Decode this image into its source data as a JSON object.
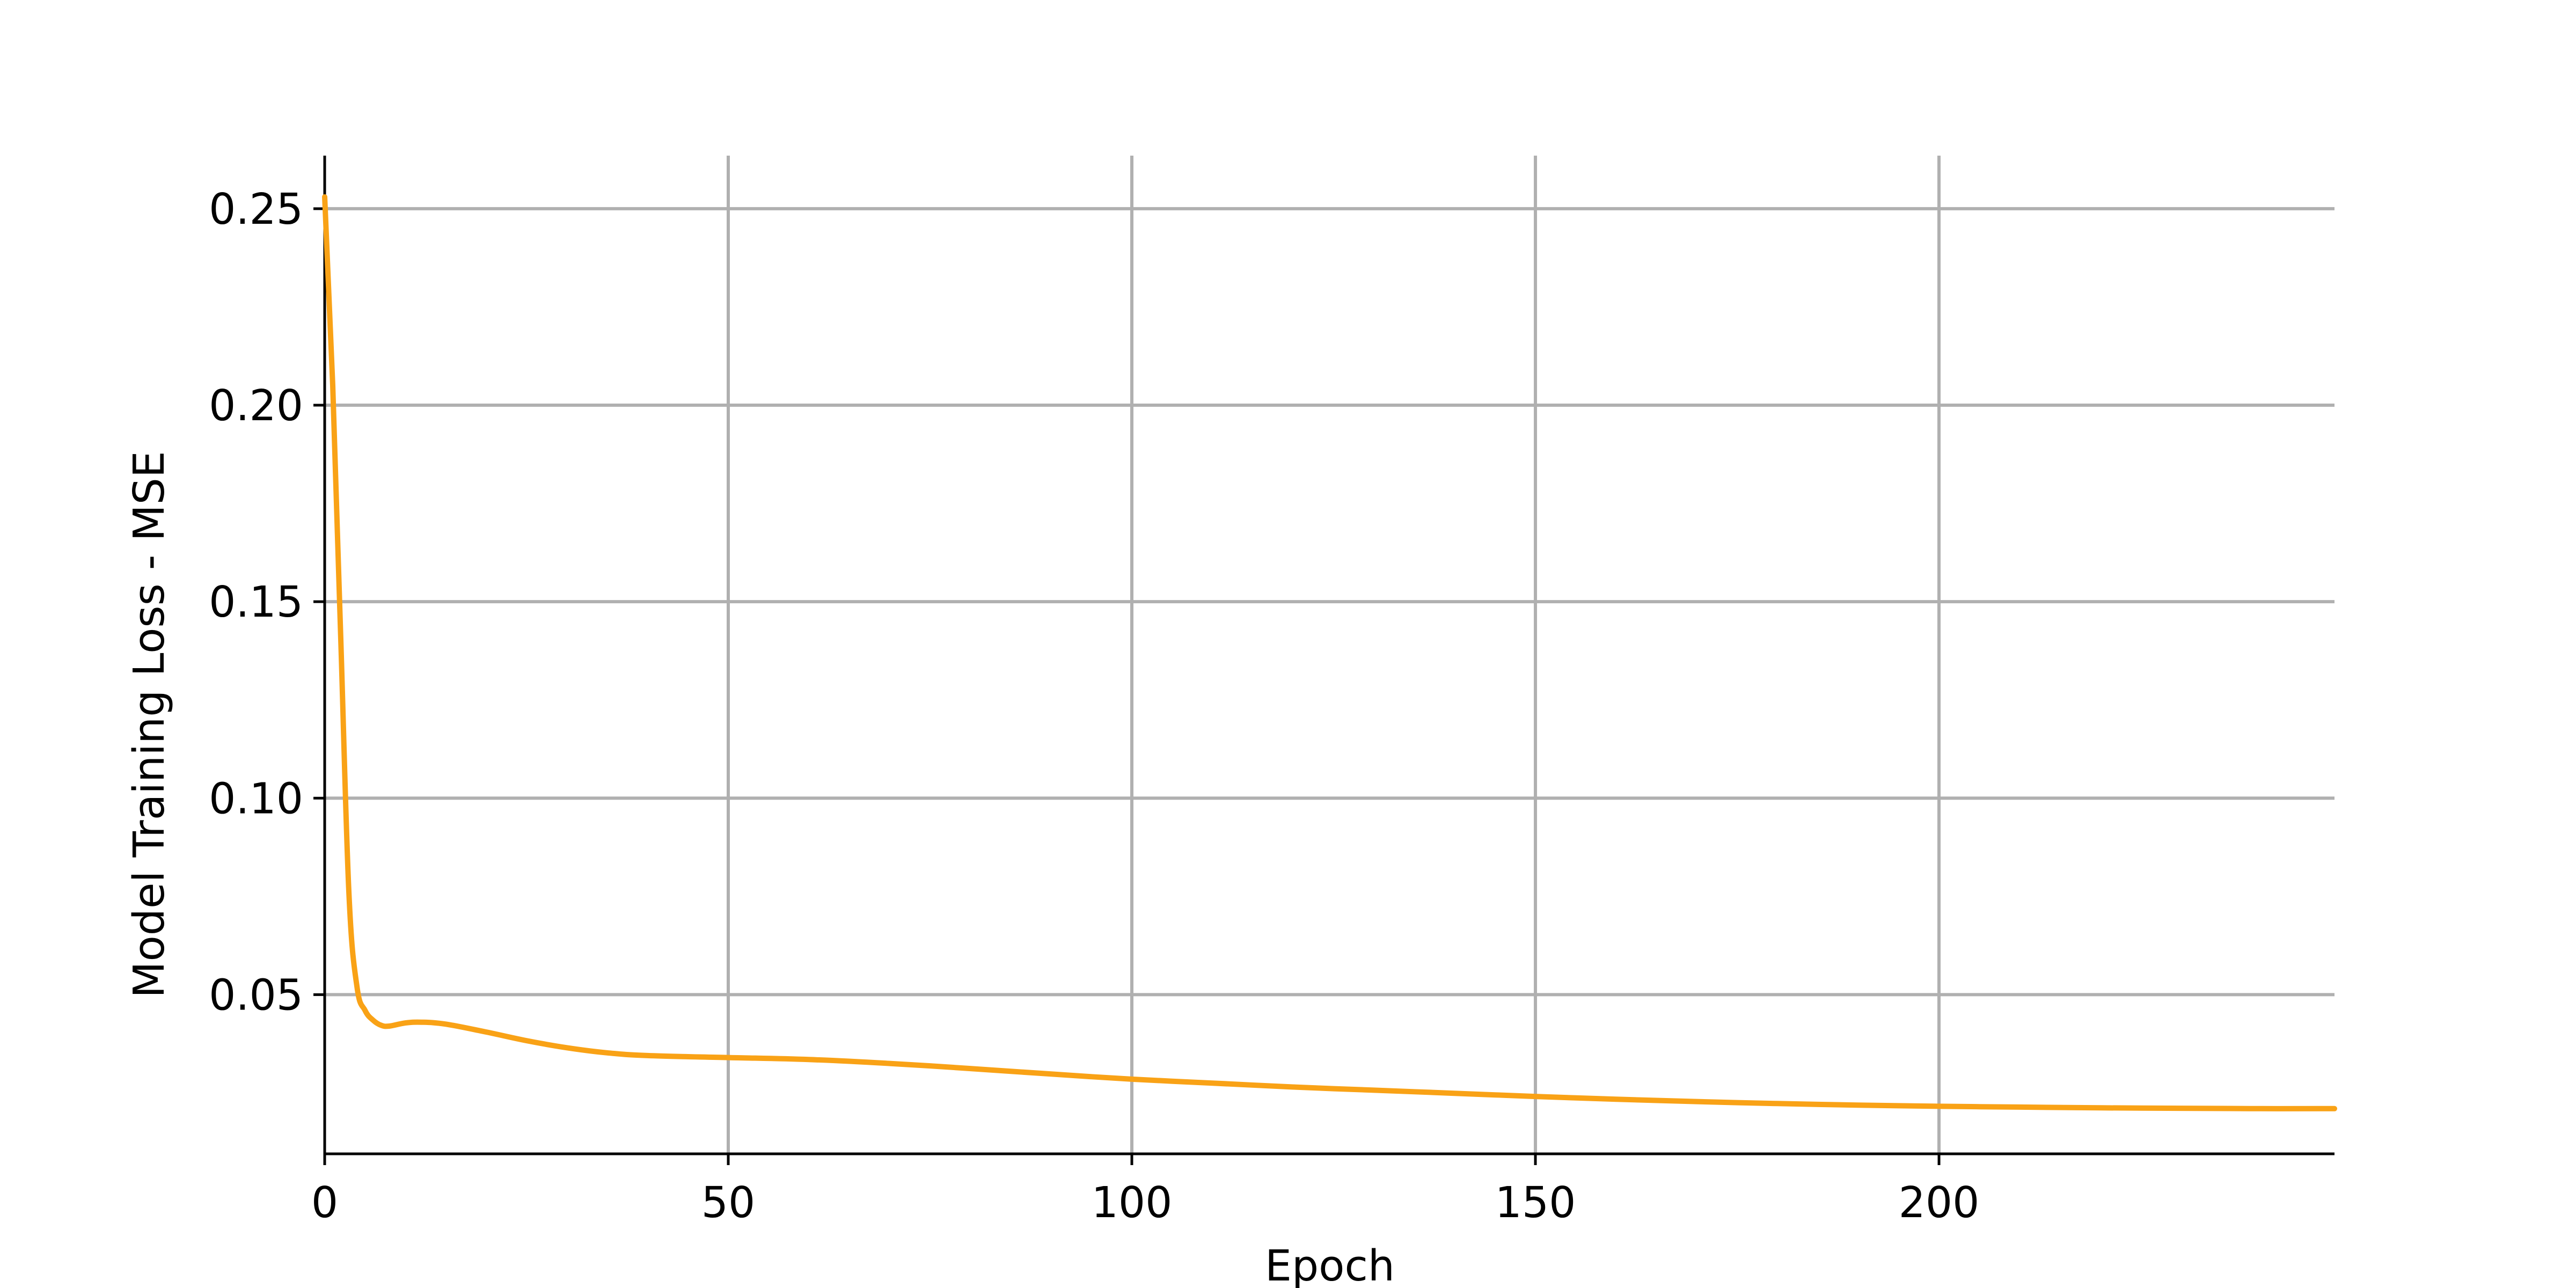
{
  "chart_data": {
    "type": "line",
    "title": "",
    "xlabel": "Epoch",
    "ylabel": "Model Training Loss - MSE",
    "xlim": [
      0,
      249
    ],
    "ylim": [
      0.0095,
      0.2635
    ],
    "x_ticks": [
      0,
      50,
      100,
      150,
      200
    ],
    "x_tick_labels": [
      "0",
      "50",
      "100",
      "150",
      "200"
    ],
    "y_ticks": [
      0.05,
      0.1,
      0.15,
      0.2,
      0.25
    ],
    "y_tick_labels": [
      "0.05",
      "0.10",
      "0.15",
      "0.20",
      "0.25"
    ],
    "grid": true,
    "legend": "none",
    "series": [
      {
        "color": "#f9a216",
        "x": [
          0,
          1,
          2,
          3,
          4,
          5,
          6,
          7,
          8,
          10,
          12,
          15,
          20,
          25,
          30,
          35,
          40,
          50,
          60,
          70,
          80,
          90,
          100,
          110,
          120,
          130,
          140,
          150,
          160,
          170,
          180,
          190,
          200,
          210,
          220,
          230,
          240,
          249
        ],
        "y": [
          0.253,
          0.205,
          0.14,
          0.076,
          0.052,
          0.046,
          0.0435,
          0.0422,
          0.042,
          0.0428,
          0.043,
          0.0425,
          0.0405,
          0.0383,
          0.0365,
          0.0352,
          0.0345,
          0.034,
          0.0335,
          0.0325,
          0.0312,
          0.0298,
          0.0285,
          0.0275,
          0.0265,
          0.0257,
          0.0249,
          0.0241,
          0.0234,
          0.0228,
          0.0223,
          0.0219,
          0.0216,
          0.0214,
          0.0212,
          0.0211,
          0.021,
          0.021
        ]
      }
    ]
  }
}
